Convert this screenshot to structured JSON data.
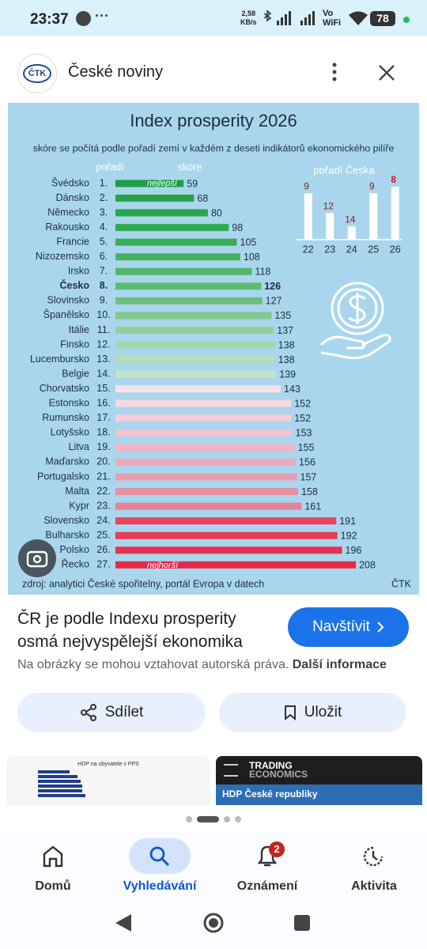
{
  "status_bar": {
    "time": "23:37",
    "speed": "2,58",
    "speed_unit": "KB/s",
    "wifi_top": "Vo",
    "wifi_bottom": "WiFi",
    "battery": "78"
  },
  "header": {
    "logo": "ČTK",
    "title": "České noviny"
  },
  "chart_data": [
    {
      "type": "hbar",
      "title": "Index prosperity 2026",
      "subtitle": "skóre se počítá podle pořadí zemí v každém z deseti indikátorů ekonomického pilíře",
      "rank_label": "pořadí",
      "value_label": "skóre",
      "categories": [
        "Švédsko",
        "Dánsko",
        "Německo",
        "Rakousko",
        "Francie",
        "Nizozemsko",
        "Irsko",
        "Česko",
        "Slovinsko",
        "Španělsko",
        "Itálie",
        "Finsko",
        "Lucembursko",
        "Belgie",
        "Chorvatsko",
        "Estonsko",
        "Rumunsko",
        "Lotyšsko",
        "Litva",
        "Maďarsko",
        "Portugalsko",
        "Malta",
        "Kypr",
        "Slovensko",
        "Bulharsko",
        "Polsko",
        "Řecko"
      ],
      "ranks": [
        "1.",
        "2.",
        "3.",
        "4.",
        "5.",
        "6.",
        "7.",
        "8.",
        "9.",
        "10.",
        "11.",
        "12.",
        "13.",
        "14.",
        "15.",
        "16.",
        "17.",
        "18.",
        "19.",
        "20.",
        "21.",
        "22.",
        "23.",
        "24.",
        "25.",
        "26.",
        "27."
      ],
      "values": [
        59,
        68,
        80,
        98,
        105,
        108,
        118,
        126,
        127,
        135,
        137,
        138,
        138,
        139,
        143,
        152,
        152,
        153,
        155,
        156,
        157,
        158,
        161,
        191,
        192,
        196,
        208
      ],
      "colors": [
        "#1e9e45",
        "#25a34a",
        "#2aa64c",
        "#31a951",
        "#3aad57",
        "#45b15f",
        "#52b66a",
        "#5fba73",
        "#6cbf7d",
        "#82c78f",
        "#95cf9e",
        "#a6d6ad",
        "#b5dcbb",
        "#c4e3c8",
        "#f7e3ea",
        "#f6d7e0",
        "#f4cdd8",
        "#f2c2cf",
        "#efb6c5",
        "#eca9ba",
        "#e99daf",
        "#e590a4",
        "#e2839a",
        "#e8435f",
        "#e83a58",
        "#e63252",
        "#e3294b"
      ],
      "highlight": 7,
      "best_label": "nejlepší",
      "worst_label": "nejhorší",
      "xlim": [
        0,
        210
      ],
      "source": "zdroj: analytici České spořitelny, portál Evropa v datech",
      "credit": "ČTK"
    },
    {
      "type": "bar",
      "title": "pořadí Česka",
      "categories": [
        "22",
        "23",
        "24",
        "25",
        "26"
      ],
      "values": [
        9,
        12,
        14,
        9,
        8
      ],
      "ylim": [
        16,
        8
      ],
      "color": "#ffffff",
      "label_colors": [
        "#8b1a1a",
        "#8b1a1a",
        "#8b1a1a",
        "#8b1a1a",
        "#d0122e"
      ]
    }
  ],
  "result": {
    "headline": "ČR je podle Indexu prosperity osmá nejvyspělejší ekonomika",
    "button": "Navštívit",
    "disclaimer": "Na obrázky se mohou vztahovat autorská práva.",
    "more": "Další informace"
  },
  "actions": [
    "Sdílet",
    "Uložit"
  ],
  "related": [
    {
      "title": "HDP na obyvatele v PPS"
    },
    {
      "brand_1": "TRADING",
      "brand_2": "ECONOMICS",
      "title": "HDP České republiky"
    }
  ],
  "nav": [
    {
      "label": "Domů"
    },
    {
      "label": "Vyhledávání"
    },
    {
      "label": "Oznámení",
      "badge": "2"
    },
    {
      "label": "Aktivita"
    }
  ]
}
